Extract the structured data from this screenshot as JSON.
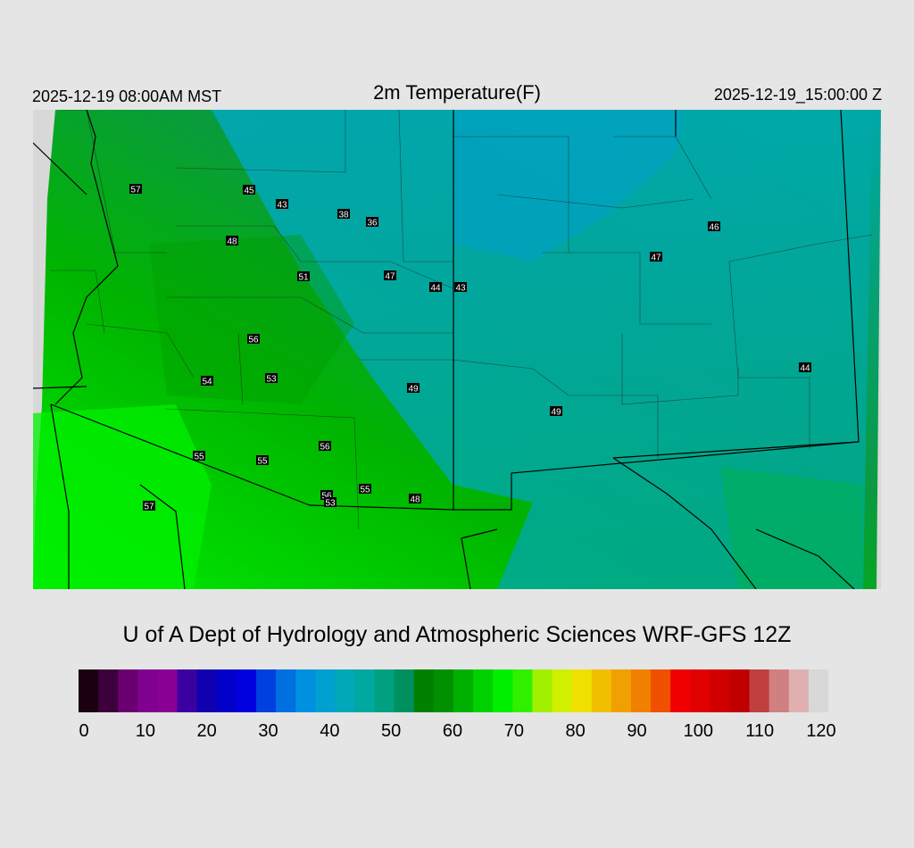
{
  "header": {
    "valid_local": "2025-12-19 08:00AM MST",
    "title": "2m Temperature(F)",
    "valid_utc": "2025-12-19_15:00:00 Z"
  },
  "credit": "U of A Dept of Hydrology and Atmospheric Sciences WRF-GFS 12Z",
  "colorbar": {
    "min": 0,
    "max": 120,
    "ticks": [
      "0",
      "10",
      "20",
      "30",
      "40",
      "50",
      "60",
      "70",
      "80",
      "90",
      "100",
      "110",
      "120"
    ],
    "colors": [
      "#1a0010",
      "#3c003c",
      "#6a0070",
      "#800090",
      "#8a0095",
      "#3a00a0",
      "#1000b0",
      "#0000c8",
      "#0000e0",
      "#0040e0",
      "#0070e0",
      "#0090e0",
      "#00a0d0",
      "#00a8b8",
      "#00a8a0",
      "#00a080",
      "#009060",
      "#008000",
      "#009000",
      "#00b000",
      "#00d000",
      "#00f000",
      "#30f000",
      "#a0f000",
      "#d0f000",
      "#f0e000",
      "#f0c000",
      "#f0a000",
      "#f08000",
      "#f05000",
      "#f00000",
      "#e00000",
      "#d00000",
      "#c00000",
      "#c04040",
      "#d08080",
      "#e0b0b0",
      "#d8d8d8"
    ]
  },
  "stations": [
    {
      "label": "57"
    },
    {
      "label": "45"
    },
    {
      "label": "43"
    },
    {
      "label": "38"
    },
    {
      "label": "36"
    },
    {
      "label": "48"
    },
    {
      "label": "51"
    },
    {
      "label": "47"
    },
    {
      "label": "44"
    },
    {
      "label": "43"
    },
    {
      "label": "56"
    },
    {
      "label": "54"
    },
    {
      "label": "53"
    },
    {
      "label": "56"
    },
    {
      "label": "49"
    },
    {
      "label": "49"
    },
    {
      "label": "55"
    },
    {
      "label": "55"
    },
    {
      "label": "56"
    },
    {
      "label": "55"
    },
    {
      "label": "53"
    },
    {
      "label": "48"
    },
    {
      "label": "57"
    },
    {
      "label": "46"
    },
    {
      "label": "47"
    },
    {
      "label": "44"
    }
  ]
}
